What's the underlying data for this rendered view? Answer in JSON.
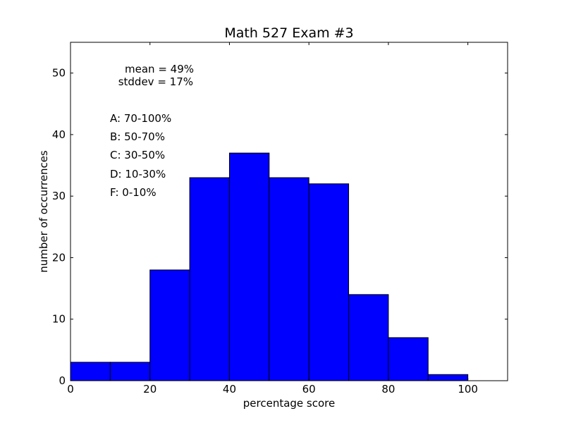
{
  "chart_data": {
    "type": "bar",
    "title": "Math 527 Exam #3",
    "xlabel": "percentage score",
    "ylabel": "number of occurrences",
    "xlim": [
      0,
      110
    ],
    "ylim": [
      0,
      55
    ],
    "x_ticks": [
      0,
      20,
      40,
      60,
      80,
      100
    ],
    "y_ticks": [
      0,
      10,
      20,
      30,
      40,
      50
    ],
    "bin_width": 10,
    "bins": [
      {
        "start": 0,
        "end": 10,
        "count": 3
      },
      {
        "start": 10,
        "end": 20,
        "count": 3
      },
      {
        "start": 20,
        "end": 30,
        "count": 18
      },
      {
        "start": 30,
        "end": 40,
        "count": 33
      },
      {
        "start": 40,
        "end": 50,
        "count": 37
      },
      {
        "start": 50,
        "end": 60,
        "count": 33
      },
      {
        "start": 60,
        "end": 70,
        "count": 32
      },
      {
        "start": 70,
        "end": 80,
        "count": 14
      },
      {
        "start": 80,
        "end": 90,
        "count": 7
      },
      {
        "start": 90,
        "end": 100,
        "count": 1
      }
    ],
    "bar_color": "#0000ff",
    "grid": false,
    "annotations": {
      "stats": [
        "mean = 49%",
        "stddev = 17%"
      ],
      "grades": [
        "A: 70-100%",
        "B: 50-70%",
        "C: 30-50%",
        "D: 10-30%",
        "F: 0-10%"
      ]
    }
  }
}
